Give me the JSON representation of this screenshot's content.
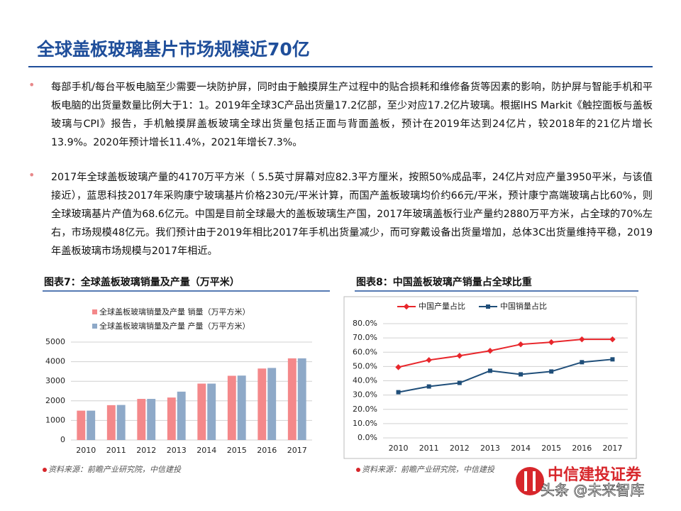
{
  "header": {
    "title": "全球盖板玻璃基片市场规模近70亿"
  },
  "bullets": [
    "每部手机/每台平板电脑至少需要一块防护屏，同时由于触摸屏生产过程中的贴合损耗和维修备货等因素的影响，防护屏与智能手机和平板电脑的出货量数量比例大于1：1。2019年全球3C产品出货量17.2亿部，至少对应17.2亿片玻璃。根据IHS Markit《触控面板与盖板玻璃与CPI》报告，手机触摸屏盖板玻璃全球出货量包括正面与背面盖板，预计在2019年达到24亿片，较2018年的21亿片增长13.9%。2020年预计增长11.4%，2021年增长7.3%。",
    "2017年全球盖板玻璃产量的4170万平方米（ 5.5英寸屏幕对应82.3平方厘米，按照50%成品率，24亿片对应产量3950平米，与该值接近），蓝思科技2017年采购康宁玻璃基片价格230元/平米计算，而国产盖板玻璃均价约66元/平米，预计康宁高端玻璃占比60%，则全球玻璃基片产值为68.6亿元。中国是目前全球最大的盖板玻璃生产国，2017年玻璃盖板行业产量约2880万平方米，占全球的70%左右，市场规模48亿元。我们预计由于2019年相比2017年手机出货量减少，而可穿戴设备出货量增加，总体3C出货量维持平稳，2019年盖板玻璃市场规模与2017年相近。"
  ],
  "chart_data": [
    {
      "type": "bar",
      "title": "图表7：全球盖板玻璃销量及产量（万平米）",
      "categories": [
        "2010",
        "2011",
        "2012",
        "2013",
        "2014",
        "2015",
        "2016",
        "2017"
      ],
      "series": [
        {
          "name": "全球盖板玻璃销量及产量 销量（万平方米）",
          "color": "#f4888a",
          "values": [
            1500,
            1780,
            2100,
            2170,
            2880,
            3280,
            3650,
            4170
          ]
        },
        {
          "name": "全球盖板玻璃销量及产量 产量（万平方米）",
          "color": "#8ea9c8",
          "values": [
            1500,
            1790,
            2100,
            2470,
            2880,
            3290,
            3680,
            4170
          ]
        }
      ],
      "ylim": [
        0,
        5000
      ],
      "yticks": [
        0,
        1000,
        2000,
        3000,
        4000,
        5000
      ],
      "grid": true,
      "source": "资料来源：前瞻产业研究院，中信建投"
    },
    {
      "type": "line",
      "title": "图表8：中国盖板玻璃产销量占全球比重",
      "categories": [
        "2010",
        "2011",
        "2012",
        "2013",
        "2014",
        "2015",
        "2016",
        "2017"
      ],
      "series": [
        {
          "name": "中国产量占比",
          "color": "#e8262b",
          "values": [
            49.5,
            54.5,
            57.5,
            61,
            65.5,
            67,
            69,
            69
          ]
        },
        {
          "name": "中国销量占比",
          "color": "#1f4e79",
          "values": [
            32,
            36,
            38.5,
            47,
            44.5,
            46.5,
            53,
            55
          ]
        }
      ],
      "ylim": [
        0,
        80
      ],
      "yticks": [
        {
          "value": 0,
          "label": "0.0%"
        },
        {
          "value": 10,
          "label": "10.0%"
        },
        {
          "value": 20,
          "label": "20.0%"
        },
        {
          "value": 30,
          "label": "30.0%"
        },
        {
          "value": 40,
          "label": "40.0%"
        },
        {
          "value": 50,
          "label": "50.0%"
        },
        {
          "value": 60,
          "label": "60.0%"
        },
        {
          "value": 70,
          "label": "70.0%"
        },
        {
          "value": 80,
          "label": "80.0%"
        }
      ],
      "grid": true,
      "source": "资料来源：前瞻产业研究院，中信建投"
    }
  ],
  "footer": {
    "logo": "中信建投证券",
    "watermark": "头条 @未来智库"
  }
}
